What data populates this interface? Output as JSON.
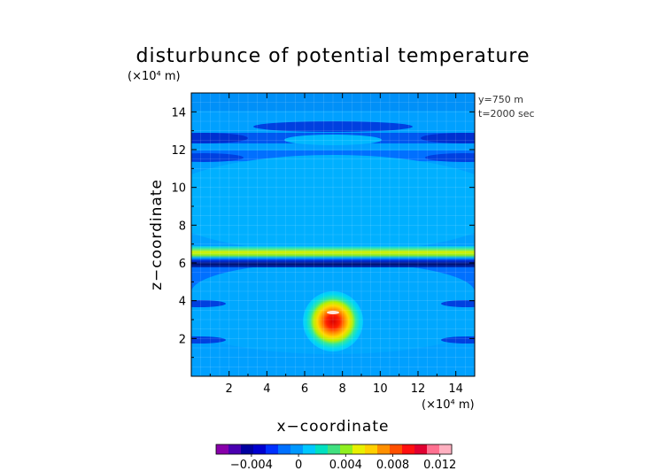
{
  "chart_data": {
    "type": "heatmap",
    "title": "disturbunce of potential temperature",
    "xlabel": "x−coordinate",
    "ylabel": "z−coordinate",
    "x_unit": "(×10⁴ m)",
    "z_unit": "(×10⁴ m)",
    "xlim": [
      0,
      15
    ],
    "ylim": [
      0,
      15
    ],
    "x_ticks": [
      "2",
      "4",
      "6",
      "8",
      "10",
      "12",
      "14"
    ],
    "y_ticks": [
      "2",
      "4",
      "6",
      "8",
      "10",
      "12",
      "14"
    ],
    "annotations": [
      "y=750  m",
      "t=2000 sec"
    ],
    "colorbar": {
      "range": [
        -0.007,
        0.013
      ],
      "tick_labels": [
        "−0.004",
        "0",
        "0.004",
        "0.008",
        "0.012"
      ],
      "colors": [
        "#8800aa",
        "#4a00b0",
        "#0000a0",
        "#0000d0",
        "#0030ff",
        "#0070ff",
        "#0098ff",
        "#00c8ff",
        "#00e0c0",
        "#40e080",
        "#90ef20",
        "#e8f000",
        "#ffd000",
        "#ff9000",
        "#ff5000",
        "#ff1010",
        "#e00030",
        "#ff7090",
        "#ffb0c0"
      ]
    },
    "features": [
      {
        "kind": "horizontal-band",
        "z_center": 6.3,
        "description": "strong positive/negative layer"
      },
      {
        "kind": "warm-bubble",
        "x_center": 7.5,
        "z_center": 3.0,
        "radius": 1.5
      }
    ]
  }
}
